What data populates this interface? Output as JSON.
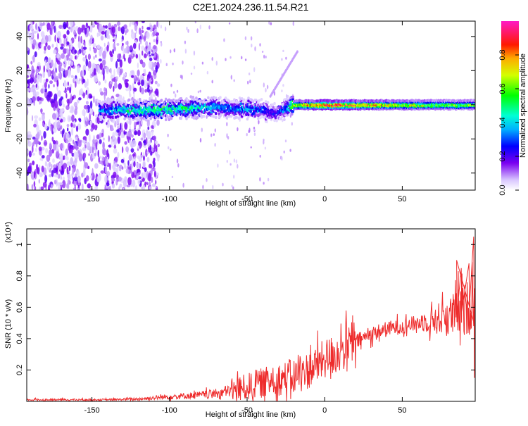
{
  "title": "C2E1.2024.236.11.54.R21",
  "chart_data": [
    {
      "type": "heatmap",
      "xlabel": "Height of straight line (km)",
      "ylabel": "Frequency (Hz)",
      "xlim": [
        -192,
        97
      ],
      "ylim": [
        -50,
        49
      ],
      "xticks": [
        -150,
        -100,
        -50,
        0,
        50
      ],
      "yticks": [
        -40,
        -20,
        0,
        20,
        40
      ],
      "colorbar": {
        "label": "Normalized spectral amplitude",
        "range": [
          0,
          1
        ],
        "ticks": [
          0.0,
          0.2,
          0.4,
          0.6,
          0.8
        ]
      },
      "ridge": {
        "x": [
          -145,
          -130,
          -110,
          -90,
          -70,
          -60,
          -50,
          -40,
          -32,
          -25,
          -20,
          0,
          50,
          97
        ],
        "frequency": [
          -3,
          -3,
          -3,
          -2,
          -1,
          -2,
          -2,
          -3,
          -5,
          -2,
          0,
          0,
          0,
          0
        ],
        "peak_amplitude": [
          0.35,
          0.45,
          0.55,
          0.5,
          0.4,
          0.35,
          0.4,
          0.3,
          0.25,
          0.35,
          0.7,
          0.95,
          0.7,
          0.6
        ]
      },
      "grid": false
    },
    {
      "type": "line",
      "xlabel": "Height of straight line (km)",
      "ylabel": "SNR (10 * v/v)",
      "y_multiplier": "(x10⁴)",
      "xlim": [
        -192,
        97
      ],
      "ylim": [
        0,
        1.1
      ],
      "xticks": [
        -150,
        -100,
        -50,
        0,
        50
      ],
      "yticks": [
        0.2,
        0.4,
        0.6,
        0.8,
        1
      ],
      "series_color": "#ee2c2c",
      "x": [
        -192,
        -180,
        -160,
        -140,
        -120,
        -100,
        -90,
        -80,
        -70,
        -60,
        -50,
        -40,
        -30,
        -20,
        -10,
        0,
        10,
        20,
        30,
        40,
        50,
        60,
        70,
        80,
        90,
        95,
        97
      ],
      "y": [
        0.01,
        0.01,
        0.01,
        0.01,
        0.015,
        0.03,
        0.035,
        0.04,
        0.05,
        0.07,
        0.09,
        0.12,
        0.14,
        0.16,
        0.2,
        0.27,
        0.32,
        0.38,
        0.43,
        0.46,
        0.48,
        0.5,
        0.52,
        0.54,
        0.58,
        0.62,
        0.65
      ],
      "grid": false
    }
  ]
}
